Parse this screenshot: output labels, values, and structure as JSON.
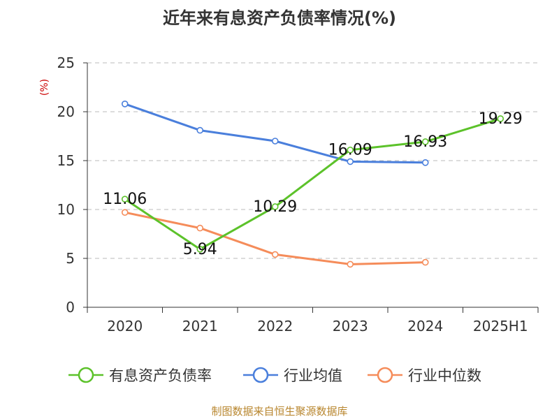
{
  "chart_data": {
    "type": "line",
    "title": "近年来有息资产负债率情况(%)",
    "ylabel": "(%)",
    "xlabel": "",
    "categories": [
      "2020",
      "2021",
      "2022",
      "2023",
      "2024",
      "2025H1"
    ],
    "ylim": [
      0,
      25
    ],
    "yticks": [
      0,
      5,
      10,
      15,
      20,
      25
    ],
    "grid": true,
    "legend_position": "bottom",
    "series": [
      {
        "name": "有息资产负债率",
        "color": "#5cc22a",
        "values": [
          11.06,
          5.94,
          10.29,
          16.09,
          16.93,
          19.29
        ],
        "labels": [
          "11.06",
          "5.94",
          "10.29",
          "16.09",
          "16.93",
          "19.29"
        ]
      },
      {
        "name": "行业均值",
        "color": "#4a7fdc",
        "values": [
          20.8,
          18.1,
          17.0,
          14.9,
          14.8,
          null
        ]
      },
      {
        "name": "行业中位数",
        "color": "#f58c5a",
        "values": [
          9.7,
          8.1,
          5.4,
          4.4,
          4.6,
          null
        ]
      }
    ]
  },
  "footer": {
    "source": "制图数据来自恒生聚源数据库"
  },
  "colors": {
    "axis": "#333333",
    "grid": "#bbbbbb",
    "ylabel": "#cc0000",
    "source": "#b8862e"
  }
}
